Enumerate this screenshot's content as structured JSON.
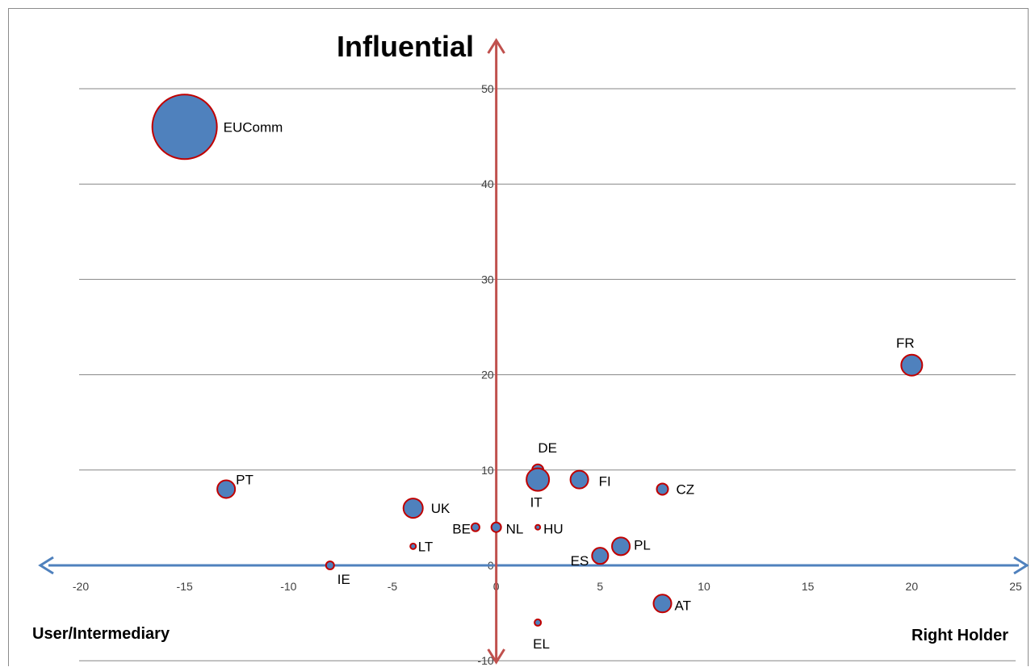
{
  "chart_data": {
    "type": "scatter",
    "title": "Influential",
    "xlabel_left": "User/Intermediary",
    "xlabel_right": "Right Holder",
    "xlim": [
      -20,
      25
    ],
    "ylim": [
      -10,
      50
    ],
    "x_ticks": [
      -20,
      -15,
      -10,
      -5,
      0,
      5,
      10,
      15,
      20,
      25
    ],
    "y_ticks": [
      -10,
      0,
      10,
      20,
      30,
      40,
      50
    ],
    "grid": "horizontal",
    "colors": {
      "bubble_fill": "#4f81bd",
      "bubble_stroke": "#c00000",
      "y_arrow": "#c0504d",
      "x_arrow": "#4f81bd",
      "grid": "#868686"
    },
    "points": [
      {
        "label": "EUComm",
        "x": -15,
        "y": 46,
        "size": 40
      },
      {
        "label": "FR",
        "x": 20,
        "y": 21,
        "size": 13
      },
      {
        "label": "PT",
        "x": -13,
        "y": 8,
        "size": 11
      },
      {
        "label": "UK",
        "x": -4,
        "y": 6,
        "size": 12
      },
      {
        "label": "DE",
        "x": 2,
        "y": 10,
        "size": 7
      },
      {
        "label": "IT",
        "x": 2,
        "y": 9,
        "size": 14
      },
      {
        "label": "FI",
        "x": 4,
        "y": 9,
        "size": 11
      },
      {
        "label": "CZ",
        "x": 8,
        "y": 8,
        "size": 7
      },
      {
        "label": "BE",
        "x": -1,
        "y": 4,
        "size": 5
      },
      {
        "label": "NL",
        "x": 0,
        "y": 4,
        "size": 6
      },
      {
        "label": "HU",
        "x": 2,
        "y": 4,
        "size": 3
      },
      {
        "label": "LT",
        "x": -4,
        "y": 2,
        "size": 3.5
      },
      {
        "label": "PL",
        "x": 6,
        "y": 2,
        "size": 11
      },
      {
        "label": "ES",
        "x": 5,
        "y": 1,
        "size": 10
      },
      {
        "label": "IE",
        "x": -8,
        "y": 0,
        "size": 5
      },
      {
        "label": "AT",
        "x": 8,
        "y": -4,
        "size": 11
      },
      {
        "label": "EL",
        "x": 2,
        "y": -6,
        "size": 4
      }
    ]
  }
}
